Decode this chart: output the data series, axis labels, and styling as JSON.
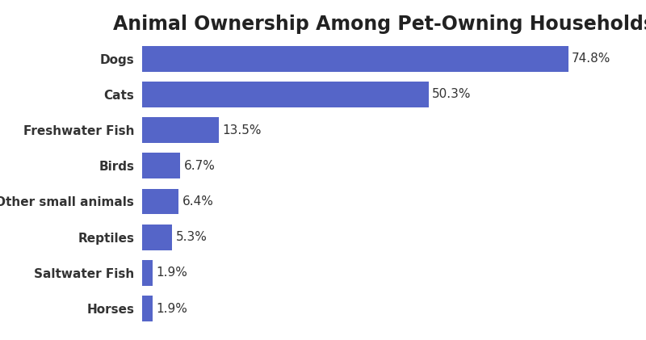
{
  "title": "Animal Ownership Among Pet-Owning Households",
  "categories": [
    "Dogs",
    "Cats",
    "Freshwater Fish",
    "Birds",
    "Other small animals",
    "Reptiles",
    "Saltwater Fish",
    "Horses"
  ],
  "values": [
    74.8,
    50.3,
    13.5,
    6.7,
    6.4,
    5.3,
    1.9,
    1.9
  ],
  "labels": [
    "74.8%",
    "50.3%",
    "13.5%",
    "6.7%",
    "6.4%",
    "5.3%",
    "1.9%",
    "1.9%"
  ],
  "bar_color": "#5565c8",
  "title_fontsize": 17,
  "label_fontsize": 11,
  "tick_fontsize": 11,
  "background_color": "#ffffff",
  "xlim": [
    0,
    85
  ],
  "figsize": [
    8.0,
    4.21
  ],
  "dpi": 100
}
